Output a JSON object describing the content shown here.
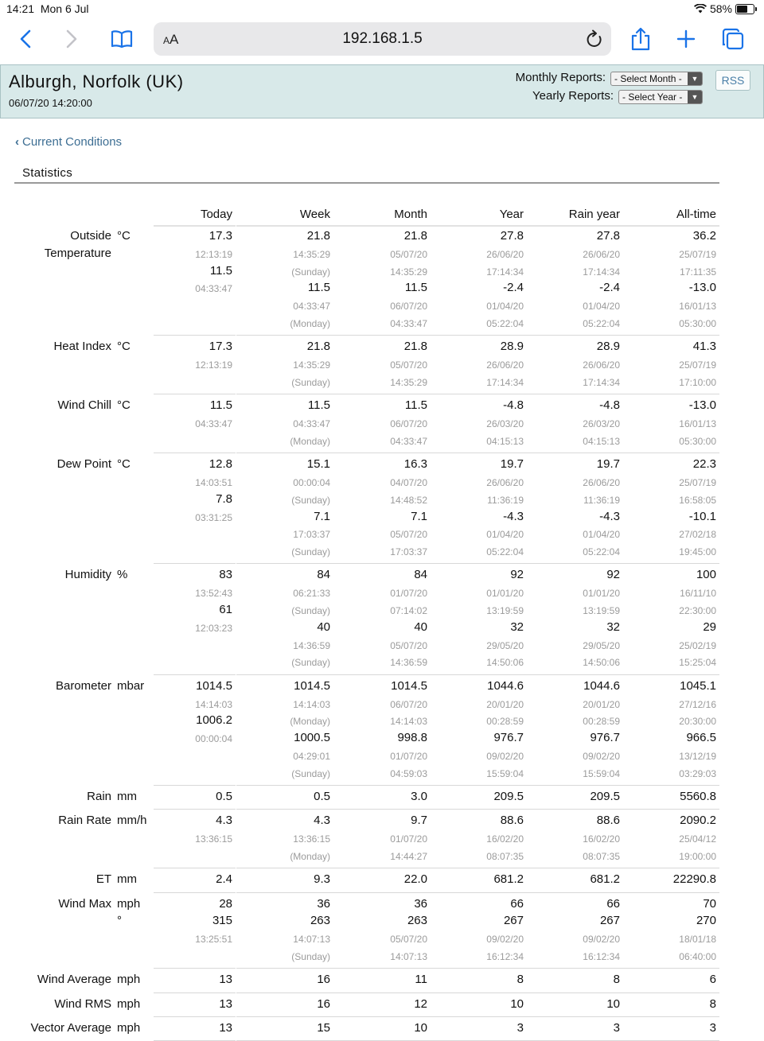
{
  "status_bar": {
    "time": "14:21",
    "date": "Mon 6 Jul",
    "battery": "58%"
  },
  "browser": {
    "reader_label": "AA",
    "url": "192.168.1.5"
  },
  "header": {
    "station": "Alburgh, Norfolk (UK)",
    "timestamp": "06/07/20 14:20:00",
    "monthly_label": "Monthly Reports:",
    "monthly_select": "- Select Month -",
    "yearly_label": "Yearly Reports:",
    "yearly_select": "- Select Year -",
    "rss": "RSS"
  },
  "nav": {
    "back_link": "Current Conditions"
  },
  "section": {
    "title": "Statistics"
  },
  "columns": [
    "Today",
    "Week",
    "Month",
    "Year",
    "Rain year",
    "All-time"
  ],
  "stats": [
    {
      "label": "Outside Temperature",
      "label_lines": [
        "Outside",
        "Temperature"
      ],
      "unit": "°C",
      "cells": [
        [
          "17.3",
          "12:13:19",
          "11.5",
          "04:33:47"
        ],
        [
          "21.8",
          "14:35:29",
          "(Sunday)",
          "11.5",
          "04:33:47",
          "(Monday)"
        ],
        [
          "21.8",
          "05/07/20",
          "14:35:29",
          "11.5",
          "06/07/20",
          "04:33:47"
        ],
        [
          "27.8",
          "26/06/20",
          "17:14:34",
          "-2.4",
          "01/04/20",
          "05:22:04"
        ],
        [
          "27.8",
          "26/06/20",
          "17:14:34",
          "-2.4",
          "01/04/20",
          "05:22:04"
        ],
        [
          "36.2",
          "25/07/19",
          "17:11:35",
          "-13.0",
          "16/01/13",
          "05:30:00"
        ]
      ]
    },
    {
      "label": "Heat Index",
      "unit": "°C",
      "cells": [
        [
          "17.3",
          "12:13:19"
        ],
        [
          "21.8",
          "14:35:29",
          "(Sunday)"
        ],
        [
          "21.8",
          "05/07/20",
          "14:35:29"
        ],
        [
          "28.9",
          "26/06/20",
          "17:14:34"
        ],
        [
          "28.9",
          "26/06/20",
          "17:14:34"
        ],
        [
          "41.3",
          "25/07/19",
          "17:10:00"
        ]
      ]
    },
    {
      "label": "Wind Chill",
      "unit": "°C",
      "cells": [
        [
          "11.5",
          "04:33:47"
        ],
        [
          "11.5",
          "04:33:47",
          "(Monday)"
        ],
        [
          "11.5",
          "06/07/20",
          "04:33:47"
        ],
        [
          "-4.8",
          "26/03/20",
          "04:15:13"
        ],
        [
          "-4.8",
          "26/03/20",
          "04:15:13"
        ],
        [
          "-13.0",
          "16/01/13",
          "05:30:00"
        ]
      ]
    },
    {
      "label": "Dew Point",
      "unit": "°C",
      "cells": [
        [
          "12.8",
          "14:03:51",
          "7.8",
          "03:31:25"
        ],
        [
          "15.1",
          "00:00:04",
          "(Sunday)",
          "7.1",
          "17:03:37",
          "(Sunday)"
        ],
        [
          "16.3",
          "04/07/20",
          "14:48:52",
          "7.1",
          "05/07/20",
          "17:03:37"
        ],
        [
          "19.7",
          "26/06/20",
          "11:36:19",
          "-4.3",
          "01/04/20",
          "05:22:04"
        ],
        [
          "19.7",
          "26/06/20",
          "11:36:19",
          "-4.3",
          "01/04/20",
          "05:22:04"
        ],
        [
          "22.3",
          "25/07/19",
          "16:58:05",
          "-10.1",
          "27/02/18",
          "19:45:00"
        ]
      ]
    },
    {
      "label": "Humidity",
      "unit": "%",
      "cells": [
        [
          "83",
          "13:52:43",
          "61",
          "12:03:23"
        ],
        [
          "84",
          "06:21:33",
          "(Sunday)",
          "40",
          "14:36:59",
          "(Sunday)"
        ],
        [
          "84",
          "01/07/20",
          "07:14:02",
          "40",
          "05/07/20",
          "14:36:59"
        ],
        [
          "92",
          "01/01/20",
          "13:19:59",
          "32",
          "29/05/20",
          "14:50:06"
        ],
        [
          "92",
          "01/01/20",
          "13:19:59",
          "32",
          "29/05/20",
          "14:50:06"
        ],
        [
          "100",
          "16/11/10",
          "22:30:00",
          "29",
          "25/02/19",
          "15:25:04"
        ]
      ]
    },
    {
      "label": "Barometer",
      "unit": "mbar",
      "cells": [
        [
          "1014.5",
          "14:14:03",
          "1006.2",
          "00:00:04"
        ],
        [
          "1014.5",
          "14:14:03",
          "(Monday)",
          "1000.5",
          "04:29:01",
          "(Sunday)"
        ],
        [
          "1014.5",
          "06/07/20",
          "14:14:03",
          "998.8",
          "01/07/20",
          "04:59:03"
        ],
        [
          "1044.6",
          "20/01/20",
          "00:28:59",
          "976.7",
          "09/02/20",
          "15:59:04"
        ],
        [
          "1044.6",
          "20/01/20",
          "00:28:59",
          "976.7",
          "09/02/20",
          "15:59:04"
        ],
        [
          "1045.1",
          "27/12/16",
          "20:30:00",
          "966.5",
          "13/12/19",
          "03:29:03"
        ]
      ]
    },
    {
      "label": "Rain",
      "unit": "mm",
      "cells": [
        [
          "0.5"
        ],
        [
          "0.5"
        ],
        [
          "3.0"
        ],
        [
          "209.5"
        ],
        [
          "209.5"
        ],
        [
          "5560.8"
        ]
      ]
    },
    {
      "label": "Rain Rate",
      "unit": "mm/h",
      "cells": [
        [
          "4.3",
          "13:36:15"
        ],
        [
          "4.3",
          "13:36:15",
          "(Monday)"
        ],
        [
          "9.7",
          "01/07/20",
          "14:44:27"
        ],
        [
          "88.6",
          "16/02/20",
          "08:07:35"
        ],
        [
          "88.6",
          "16/02/20",
          "08:07:35"
        ],
        [
          "2090.2",
          "25/04/12",
          "19:00:00"
        ]
      ]
    },
    {
      "label": "ET",
      "unit": "mm",
      "cells": [
        [
          "2.4"
        ],
        [
          "9.3"
        ],
        [
          "22.0"
        ],
        [
          "681.2"
        ],
        [
          "681.2"
        ],
        [
          "22290.8"
        ]
      ]
    },
    {
      "label": "Wind Max",
      "unit": "mph",
      "unit2": "°",
      "cells": [
        [
          "28",
          "315",
          "13:25:51"
        ],
        [
          "36",
          "263",
          "14:07:13",
          "(Sunday)"
        ],
        [
          "36",
          "263",
          "05/07/20",
          "14:07:13"
        ],
        [
          "66",
          "267",
          "09/02/20",
          "16:12:34"
        ],
        [
          "66",
          "267",
          "09/02/20",
          "16:12:34"
        ],
        [
          "70",
          "270",
          "18/01/18",
          "06:40:00"
        ]
      ]
    },
    {
      "label": "Wind Average",
      "unit": "mph",
      "cells": [
        [
          "13"
        ],
        [
          "16"
        ],
        [
          "11"
        ],
        [
          "8"
        ],
        [
          "8"
        ],
        [
          "6"
        ]
      ]
    },
    {
      "label": "Wind RMS",
      "unit": "mph",
      "cells": [
        [
          "13"
        ],
        [
          "16"
        ],
        [
          "12"
        ],
        [
          "10"
        ],
        [
          "10"
        ],
        [
          "8"
        ]
      ]
    },
    {
      "label": "Vector Average",
      "unit": "mph",
      "cells": [
        [
          "13"
        ],
        [
          "15"
        ],
        [
          "10"
        ],
        [
          "3"
        ],
        [
          "3"
        ],
        [
          "3"
        ]
      ]
    }
  ]
}
